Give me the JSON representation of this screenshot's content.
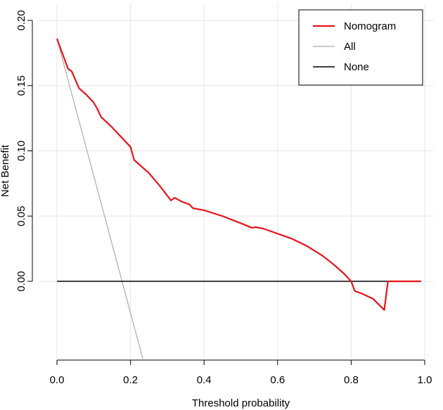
{
  "chart_data": {
    "type": "line",
    "title": "",
    "xlabel": "Threshold probability",
    "ylabel": "Net Benefit",
    "xlim": [
      0,
      1
    ],
    "ylim": [
      -0.06,
      0.2
    ],
    "x_ticks": [
      {
        "value": 0.0,
        "label": "0.0"
      },
      {
        "value": 0.2,
        "label": "0.2"
      },
      {
        "value": 0.4,
        "label": "0.4"
      },
      {
        "value": 0.6,
        "label": "0.6"
      },
      {
        "value": 0.8,
        "label": "0.8"
      },
      {
        "value": 1.0,
        "label": "1.0"
      }
    ],
    "y_ticks": [
      {
        "value": 0.0,
        "label": "0.00"
      },
      {
        "value": 0.05,
        "label": "0.05"
      },
      {
        "value": 0.1,
        "label": "0.10"
      },
      {
        "value": 0.15,
        "label": "0.15"
      },
      {
        "value": 0.2,
        "label": "0.20"
      }
    ],
    "grid": true,
    "legend_position": "top-right",
    "series": [
      {
        "name": "Nomogram",
        "color": "#e8141b",
        "points": [
          [
            0.0,
            0.186
          ],
          [
            0.03,
            0.163
          ],
          [
            0.04,
            0.161
          ],
          [
            0.06,
            0.148
          ],
          [
            0.08,
            0.143
          ],
          [
            0.1,
            0.137
          ],
          [
            0.11,
            0.132
          ],
          [
            0.12,
            0.126
          ],
          [
            0.15,
            0.118
          ],
          [
            0.18,
            0.109
          ],
          [
            0.2,
            0.103
          ],
          [
            0.21,
            0.093
          ],
          [
            0.25,
            0.083
          ],
          [
            0.28,
            0.073
          ],
          [
            0.31,
            0.062
          ],
          [
            0.32,
            0.064
          ],
          [
            0.34,
            0.061
          ],
          [
            0.36,
            0.059
          ],
          [
            0.37,
            0.056
          ],
          [
            0.4,
            0.0545
          ],
          [
            0.45,
            0.05
          ],
          [
            0.5,
            0.0445
          ],
          [
            0.53,
            0.041
          ],
          [
            0.54,
            0.0415
          ],
          [
            0.56,
            0.0405
          ],
          [
            0.6,
            0.0365
          ],
          [
            0.64,
            0.0325
          ],
          [
            0.68,
            0.027
          ],
          [
            0.72,
            0.02
          ],
          [
            0.75,
            0.0135
          ],
          [
            0.78,
            0.006
          ],
          [
            0.8,
            0.0
          ],
          [
            0.81,
            -0.0075
          ],
          [
            0.83,
            -0.0095
          ],
          [
            0.86,
            -0.0135
          ],
          [
            0.89,
            -0.022
          ],
          [
            0.9,
            0.0
          ],
          [
            0.99,
            0.0
          ]
        ]
      },
      {
        "name": "All",
        "color": "#aaaaaa",
        "points": [
          [
            0.0,
            0.186
          ],
          [
            0.234,
            -0.06
          ]
        ]
      },
      {
        "name": "None",
        "color": "#000000",
        "points": [
          [
            0.0,
            0.0
          ],
          [
            0.99,
            0.0
          ]
        ]
      }
    ]
  }
}
